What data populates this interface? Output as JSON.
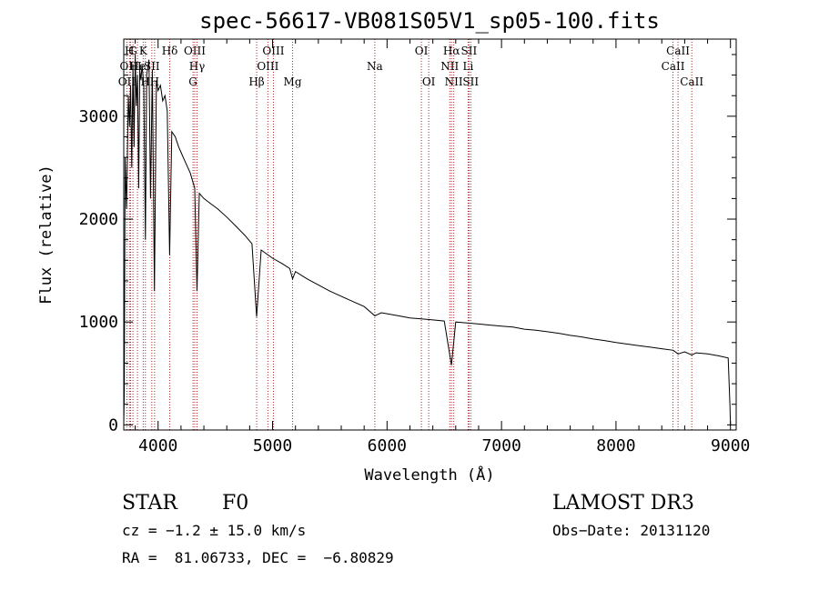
{
  "chart_data": {
    "type": "line",
    "title": "spec-56617-VB081S05V1_sp05-100.fits",
    "xlabel": "Wavelength (Å)",
    "ylabel": "Flux (relative)",
    "xlim": [
      3700,
      9050
    ],
    "ylim": [
      -50,
      3750
    ],
    "xticks": [
      4000,
      5000,
      6000,
      7000,
      8000,
      9000
    ],
    "yticks": [
      0,
      1000,
      2000,
      3000
    ],
    "series": [
      {
        "name": "spectrum",
        "points": [
          [
            3700,
            0
          ],
          [
            3705,
            350
          ],
          [
            3712,
            2600
          ],
          [
            3725,
            2100
          ],
          [
            3740,
            3200
          ],
          [
            3750,
            2900
          ],
          [
            3760,
            3300
          ],
          [
            3770,
            2500
          ],
          [
            3780,
            3500
          ],
          [
            3790,
            2700
          ],
          [
            3800,
            3600
          ],
          [
            3810,
            3100
          ],
          [
            3820,
            3400
          ],
          [
            3830,
            2300
          ],
          [
            3840,
            3450
          ],
          [
            3850,
            3350
          ],
          [
            3860,
            3500
          ],
          [
            3875,
            3300
          ],
          [
            3889,
            1800
          ],
          [
            3900,
            3400
          ],
          [
            3920,
            3550
          ],
          [
            3934,
            2200
          ],
          [
            3950,
            3450
          ],
          [
            3968,
            1300
          ],
          [
            3985,
            3350
          ],
          [
            4000,
            3250
          ],
          [
            4020,
            3300
          ],
          [
            4040,
            3150
          ],
          [
            4060,
            3200
          ],
          [
            4080,
            3050
          ],
          [
            4101,
            1650
          ],
          [
            4120,
            2850
          ],
          [
            4150,
            2800
          ],
          [
            4180,
            2700
          ],
          [
            4200,
            2650
          ],
          [
            4240,
            2550
          ],
          [
            4280,
            2450
          ],
          [
            4320,
            2300
          ],
          [
            4340,
            1300
          ],
          [
            4360,
            2250
          ],
          [
            4400,
            2200
          ],
          [
            4460,
            2150
          ],
          [
            4520,
            2100
          ],
          [
            4600,
            2020
          ],
          [
            4680,
            1930
          ],
          [
            4760,
            1840
          ],
          [
            4820,
            1760
          ],
          [
            4861,
            1050
          ],
          [
            4900,
            1700
          ],
          [
            4950,
            1660
          ],
          [
            5000,
            1620
          ],
          [
            5080,
            1570
          ],
          [
            5150,
            1520
          ],
          [
            5175,
            1420
          ],
          [
            5200,
            1490
          ],
          [
            5300,
            1420
          ],
          [
            5400,
            1360
          ],
          [
            5500,
            1300
          ],
          [
            5600,
            1250
          ],
          [
            5700,
            1200
          ],
          [
            5800,
            1150
          ],
          [
            5893,
            1060
          ],
          [
            5950,
            1090
          ],
          [
            6000,
            1080
          ],
          [
            6100,
            1060
          ],
          [
            6200,
            1040
          ],
          [
            6300,
            1030
          ],
          [
            6400,
            1020
          ],
          [
            6500,
            1010
          ],
          [
            6563,
            580
          ],
          [
            6600,
            1000
          ],
          [
            6700,
            990
          ],
          [
            6800,
            980
          ],
          [
            6900,
            970
          ],
          [
            7000,
            960
          ],
          [
            7100,
            950
          ],
          [
            7200,
            930
          ],
          [
            7300,
            920
          ],
          [
            7400,
            905
          ],
          [
            7500,
            890
          ],
          [
            7600,
            870
          ],
          [
            7700,
            855
          ],
          [
            7800,
            835
          ],
          [
            7900,
            820
          ],
          [
            8000,
            800
          ],
          [
            8100,
            785
          ],
          [
            8200,
            770
          ],
          [
            8300,
            755
          ],
          [
            8400,
            740
          ],
          [
            8500,
            725
          ],
          [
            8542,
            690
          ],
          [
            8600,
            710
          ],
          [
            8662,
            680
          ],
          [
            8700,
            700
          ],
          [
            8800,
            690
          ],
          [
            8900,
            670
          ],
          [
            8980,
            650
          ],
          [
            8995,
            200
          ],
          [
            9000,
            0
          ]
        ]
      }
    ],
    "lines": [
      {
        "label": "OII",
        "wl": 3727,
        "row": 3
      },
      {
        "label": "H",
        "wl": 3750,
        "row": 1
      },
      {
        "label": "OIII",
        "wl": 3760,
        "row": 2
      },
      {
        "label": "G",
        "wl": 3780,
        "row": 1
      },
      {
        "label": "He",
        "wl": 3820,
        "row": 2
      },
      {
        "label": "K",
        "wl": 3870,
        "row": 1
      },
      {
        "label": "H",
        "wl": 3889,
        "row": 3
      },
      {
        "label": "SII",
        "wl": 3945,
        "row": 2
      },
      {
        "label": "H",
        "wl": 3969,
        "row": 3
      },
      {
        "label": "Hδ",
        "wl": 4102,
        "row": 1
      },
      {
        "label": "OIII",
        "wl": 4320,
        "row": 1
      },
      {
        "label": "Hγ",
        "wl": 4340,
        "row": 2
      },
      {
        "label": "G",
        "wl": 4305,
        "row": 3
      },
      {
        "label": "Hβ",
        "wl": 4861,
        "row": 3
      },
      {
        "label": "OIII",
        "wl": 4959,
        "row": 2
      },
      {
        "label": "OIII",
        "wl": 5007,
        "row": 1
      },
      {
        "label": "Mg",
        "wl": 5175,
        "row": 3
      },
      {
        "label": "Na",
        "wl": 5893,
        "row": 2
      },
      {
        "label": "OI",
        "wl": 6300,
        "row": 1
      },
      {
        "label": "OI",
        "wl": 6364,
        "row": 3
      },
      {
        "label": "NII",
        "wl": 6548,
        "row": 2
      },
      {
        "label": "Hα",
        "wl": 6563,
        "row": 1
      },
      {
        "label": "NII",
        "wl": 6583,
        "row": 3
      },
      {
        "label": "Li",
        "wl": 6708,
        "row": 2
      },
      {
        "label": "SII",
        "wl": 6716,
        "row": 1
      },
      {
        "label": "SII",
        "wl": 6731,
        "row": 3
      },
      {
        "label": "CaII",
        "wl": 8498,
        "row": 2
      },
      {
        "label": "CaII",
        "wl": 8542,
        "row": 1
      },
      {
        "label": "CaII",
        "wl": 8662,
        "row": 3
      }
    ]
  },
  "info": {
    "class_label": "STAR",
    "subclass": "F0",
    "cz": "cz = −1.2 ± 15.0 km/s",
    "coords": "RA =  81.06733, DEC =  −6.80829",
    "survey": "LAMOST DR3",
    "obs_date": "Obs−Date: 20131120"
  },
  "colors": {
    "line_marker": "#b22222",
    "spectrum": "#000000",
    "axes": "#000000"
  }
}
